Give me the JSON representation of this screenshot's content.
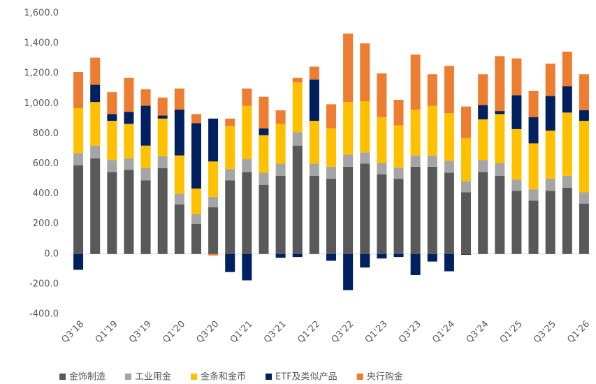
{
  "chart_data": {
    "type": "bar",
    "stacked": true,
    "categories": [
      "Q3'18",
      null,
      "Q1'19",
      null,
      "Q3'19",
      null,
      "Q1'20",
      null,
      "Q3'20",
      null,
      "Q1'21",
      null,
      "Q3'21",
      null,
      "Q1'22",
      null,
      "Q3'22",
      null,
      "Q1'23",
      null,
      "Q3'23",
      null,
      "Q1'24",
      null,
      "Q3'24",
      null,
      "Q1'25",
      null,
      "Q3'25",
      null,
      "Q1'26"
    ],
    "series": [
      {
        "name": "金饰制造",
        "color": "#595959",
        "values": [
          590,
          635,
          545,
          560,
          490,
          570,
          330,
          200,
          310,
          490,
          545,
          460,
          520,
          720,
          520,
          500,
          580,
          600,
          530,
          500,
          580,
          580,
          540,
          410,
          545,
          520,
          420,
          355,
          420,
          440,
          335
        ]
      },
      {
        "name": "工业用金",
        "color": "#a5a5a5",
        "values": [
          80,
          85,
          80,
          75,
          80,
          80,
          70,
          65,
          70,
          75,
          85,
          80,
          80,
          90,
          80,
          80,
          80,
          75,
          75,
          75,
          75,
          75,
          80,
          75,
          80,
          85,
          75,
          75,
          80,
          80,
          75
        ]
      },
      {
        "name": "金条和金币",
        "color": "#ffc000",
        "values": [
          300,
          290,
          260,
          230,
          150,
          250,
          255,
          170,
          235,
          285,
          355,
          250,
          265,
          330,
          285,
          255,
          350,
          340,
          305,
          280,
          305,
          330,
          315,
          285,
          270,
          325,
          335,
          305,
          320,
          420,
          475
        ]
      },
      {
        "name": "ETF及类似产品",
        "color": "#002060",
        "values": [
          -105,
          115,
          45,
          80,
          265,
          20,
          305,
          435,
          285,
          -120,
          -175,
          45,
          -25,
          -20,
          275,
          -45,
          -240,
          -90,
          -30,
          -20,
          -140,
          -50,
          -115,
          -5,
          95,
          20,
          225,
          175,
          230,
          175,
          70
        ]
      },
      {
        "name": "央行购金",
        "color": "#ed7d31",
        "values": [
          240,
          180,
          145,
          225,
          110,
          120,
          140,
          60,
          -10,
          50,
          115,
          210,
          90,
          30,
          85,
          160,
          455,
          385,
          290,
          170,
          365,
          210,
          315,
          210,
          205,
          365,
          245,
          175,
          215,
          230,
          240
        ]
      }
    ],
    "ylim": [
      -400,
      1600
    ],
    "yticks": [
      {
        "value": -400,
        "label": "-400.0"
      },
      {
        "value": -200,
        "label": "-200.0"
      },
      {
        "value": 0,
        "label": "0.0"
      },
      {
        "value": 200,
        "label": "200.0"
      },
      {
        "value": 400,
        "label": "400.0"
      },
      {
        "value": 600,
        "label": "600.0"
      },
      {
        "value": 800,
        "label": "800.0"
      },
      {
        "value": 1000,
        "label": "1,000.0"
      },
      {
        "value": 1200,
        "label": "1,200.0"
      },
      {
        "value": 1400,
        "label": "1,400.0"
      },
      {
        "value": 1600,
        "label": "1,600.0"
      }
    ],
    "legend": "bottom"
  }
}
